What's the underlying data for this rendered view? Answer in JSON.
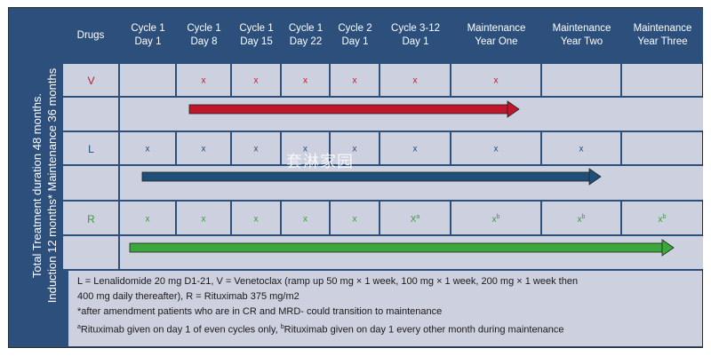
{
  "side_label": {
    "line1": "Total Treatment duration 48 months.",
    "line2": "Induction 12 months* Maintenance 36 months"
  },
  "header": {
    "drugs": "Drugs",
    "columns": [
      [
        "Cycle 1",
        "Day 1"
      ],
      [
        "Cycle 1",
        "Day 8"
      ],
      [
        "Cycle 1",
        "Day 15"
      ],
      [
        "Cycle 1",
        "Day 22"
      ],
      [
        "Cycle 2",
        "Day 1"
      ],
      [
        "Cycle 3-12",
        "Day 1"
      ],
      [
        "Maintenance",
        "Year One"
      ],
      [
        "Maintenance",
        "Year Two"
      ],
      [
        "Maintenance",
        "Year Three"
      ]
    ]
  },
  "drugs": {
    "V": {
      "label": "V",
      "color": "#c0162b",
      "marks": [
        "",
        "x",
        "x",
        "x",
        "x",
        "x",
        "x",
        "",
        ""
      ]
    },
    "L": {
      "label": "L",
      "color": "#1f4e79",
      "marks": [
        "x",
        "x",
        "x",
        "x",
        "x",
        "x",
        "x",
        "x",
        ""
      ]
    },
    "R": {
      "label": "R",
      "color": "#3a9d3a",
      "marks": [
        "x",
        "x",
        "x",
        "x",
        "x",
        "X",
        "x",
        "x",
        "x"
      ],
      "sups": [
        "",
        "",
        "",
        "",
        "",
        "a",
        "b",
        "b",
        "b"
      ]
    }
  },
  "arrows": {
    "V": {
      "color": "#c0162b"
    },
    "L": {
      "color": "#1f4e79"
    },
    "R": {
      "color": "#3aa83a"
    }
  },
  "footer": {
    "line1": "L = Lenalidomide 20 mg D1-21, V = Venetoclax (ramp up 50 mg × 1 week, 100 mg × 1 week, 200 mg × 1 week then",
    "line2": "400 mg daily thereafter), R = Rituximab 375 mg/m2",
    "line3": "*after amendment patients who are in CR and MRD- could transition to maintenance",
    "line4_sup_a": "a",
    "line4_a": "Rituximab given on day 1 of even cycles only, ",
    "line4_sup_b": "b",
    "line4_b": "Rituximab given on day 1 every other month during maintenance"
  },
  "watermark": "套淋家园"
}
